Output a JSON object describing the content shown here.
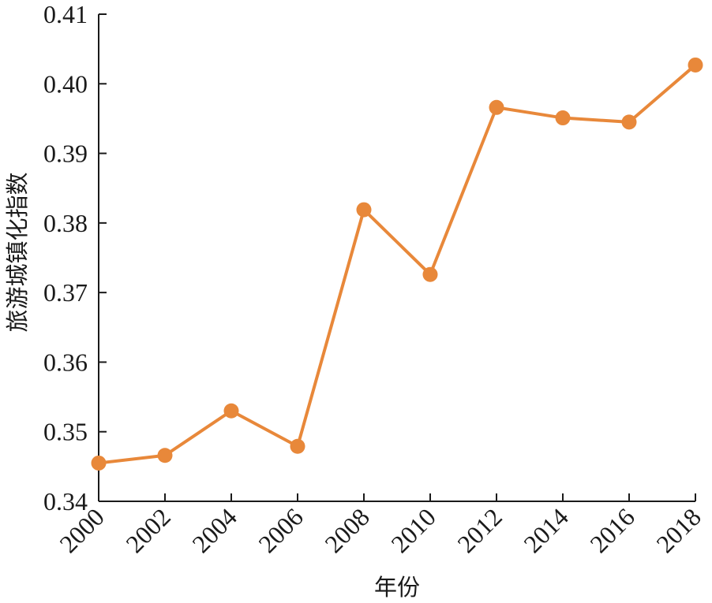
{
  "chart_data": {
    "type": "line",
    "title": "",
    "xlabel": "年份",
    "ylabel": "旅游城镇化指数",
    "x": [
      "2000",
      "2002",
      "2004",
      "2006",
      "2008",
      "2010",
      "2012",
      "2014",
      "2016",
      "2018"
    ],
    "series": [
      {
        "values": [
          0.3455,
          0.3466,
          0.353,
          0.3479,
          0.3819,
          0.3726,
          0.3966,
          0.3951,
          0.3945,
          0.4027
        ]
      }
    ],
    "ylim": [
      0.34,
      0.41
    ],
    "yticks": [
      "0.34",
      "0.35",
      "0.36",
      "0.37",
      "0.38",
      "0.39",
      "0.40",
      "0.41"
    ],
    "xticks": [
      "2000",
      "2002",
      "2004",
      "2006",
      "2008",
      "2010",
      "2012",
      "2014",
      "2016",
      "2018"
    ],
    "grid": false,
    "legend": "none",
    "color": "#E8883A"
  }
}
